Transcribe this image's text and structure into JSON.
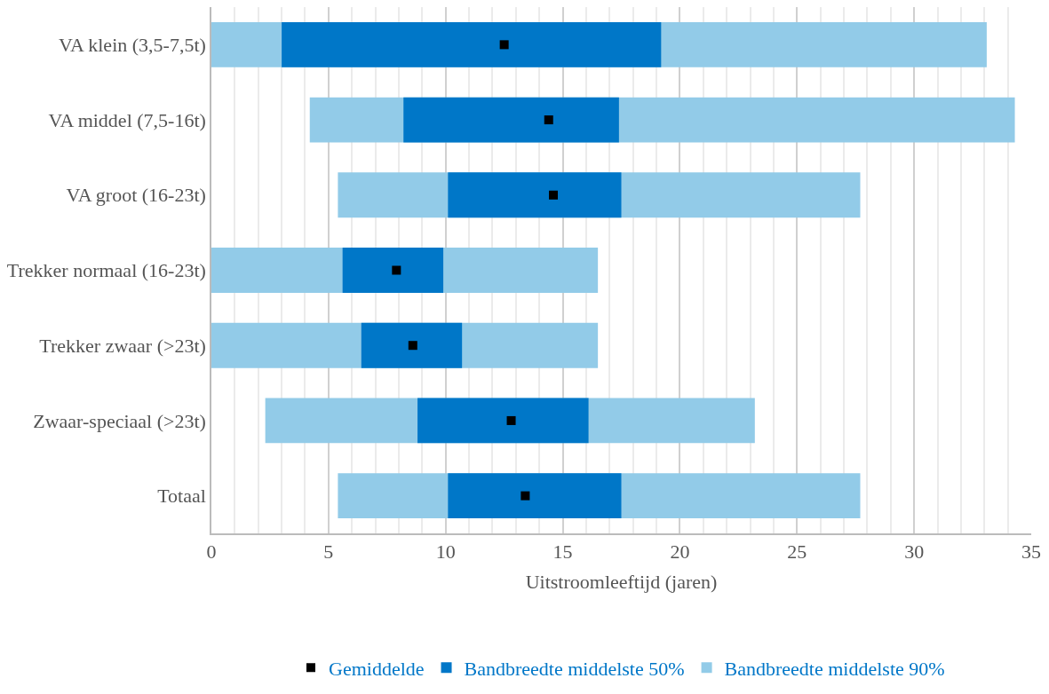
{
  "chart_data": {
    "type": "bar",
    "orientation": "horizontal",
    "xlabel": "Uitstroomleeftijd (jaren)",
    "categories": [
      "VA klein (3,5-7,5t)",
      "VA middel (7,5-16t)",
      "VA groot (16-23t)",
      "Trekker normaal (16-23t)",
      "Trekker zwaar (>23t)",
      "Zwaar-speciaal (>23t)",
      "Totaal"
    ],
    "series": [
      {
        "name": "Bandbreedte middelste 90%",
        "color": "#92cbe8",
        "base": [
          0,
          4.2,
          5.4,
          0,
          0,
          2.3,
          5.4
        ],
        "values": [
          33.1,
          30.1,
          22.3,
          16.5,
          16.5,
          20.9,
          22.3
        ]
      },
      {
        "name": "Bandbreedte middelste 50%",
        "color": "#0077c8",
        "base": [
          3.0,
          8.2,
          10.1,
          5.6,
          6.4,
          8.8,
          10.1
        ],
        "values": [
          16.2,
          9.2,
          7.4,
          4.3,
          4.3,
          7.3,
          7.4
        ]
      },
      {
        "name": "Gemiddelde",
        "type": "scatter",
        "color": "#000000",
        "values": [
          12.5,
          14.4,
          14.6,
          7.9,
          8.6,
          12.8,
          13.4
        ]
      }
    ],
    "xlim": [
      0,
      35
    ],
    "xticks": [
      0,
      5,
      10,
      15,
      20,
      25,
      30,
      35
    ],
    "grid": "x",
    "legend": "bottom"
  }
}
